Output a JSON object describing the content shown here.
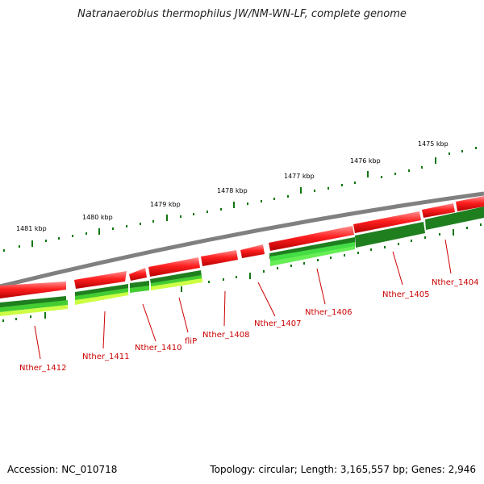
{
  "title": "Natranaerobius thermophilus JW/NM-WN-LF, complete genome",
  "footer": {
    "accession": "Accession: NC_010718",
    "summary": "Topology: circular; Length: 3,165,557 bp; Genes: 2,946"
  },
  "ruler_labels": [
    "1481 kbp",
    "1480 kbp",
    "1479 kbp",
    "1478 kbp",
    "1477 kbp",
    "1476 kbp",
    "1475 kbp"
  ],
  "genes": [
    "Nther_1412",
    "Nther_1411",
    "Nther_1410",
    "fliP",
    "Nther_1408",
    "Nther_1407",
    "Nther_1406",
    "Nther_1405",
    "Nther_1404"
  ],
  "colors": {
    "backbone": "#888888",
    "cds": "#ee1111",
    "feature_dark": "#1f7f1f",
    "feature_light": "#44dd44",
    "feature_yellow": "#ccff44",
    "ticks": "#117711",
    "gene_label": "#cc0000"
  }
}
